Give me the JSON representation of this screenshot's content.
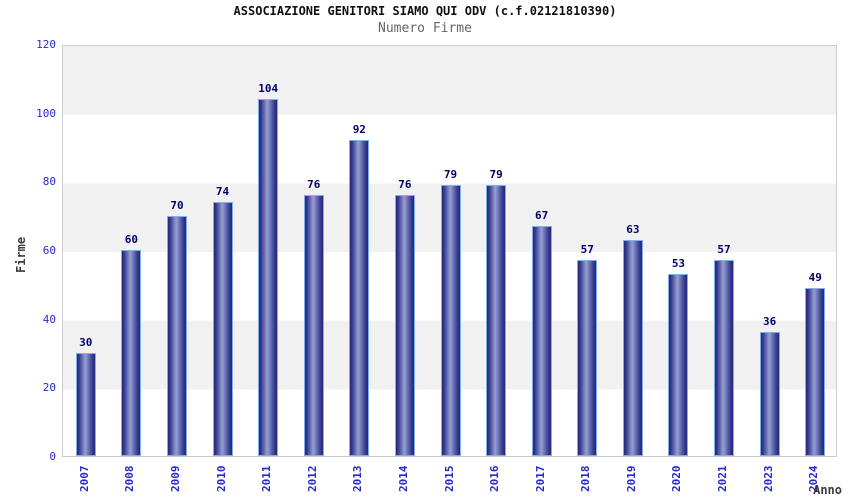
{
  "chart_data": {
    "type": "bar",
    "title": "ASSOCIAZIONE GENITORI SIAMO QUI ODV (c.f.02121810390)",
    "subtitle": "Numero Firme",
    "xlabel": "Anno",
    "ylabel": "Firme",
    "categories": [
      "2007",
      "2008",
      "2009",
      "2010",
      "2011",
      "2012",
      "2013",
      "2014",
      "2015",
      "2016",
      "2017",
      "2018",
      "2019",
      "2020",
      "2021",
      "2023",
      "2024"
    ],
    "values": [
      30,
      60,
      70,
      74,
      104,
      76,
      92,
      76,
      79,
      79,
      67,
      57,
      63,
      53,
      57,
      36,
      49
    ],
    "ylim": [
      0,
      120
    ],
    "yticks": [
      0,
      20,
      40,
      60,
      80,
      100,
      120
    ],
    "grid": "horizontal-bands-every-20",
    "legend": "none",
    "bar_value_labels": true,
    "colors": {
      "bar_edge": "#23257a",
      "bar_mid": "#6f77b7",
      "bar_center": "#96a0d2",
      "bar_outline": "#7fb0e8",
      "axis_tick_text": "#2929cc",
      "value_label_text": "#00006b",
      "band_fill": "#f1f1f1",
      "plot_border": "#cccccc",
      "title_text": "#111111",
      "subtitle_text": "#666666",
      "axis_title_text": "#3a3a3a"
    }
  }
}
